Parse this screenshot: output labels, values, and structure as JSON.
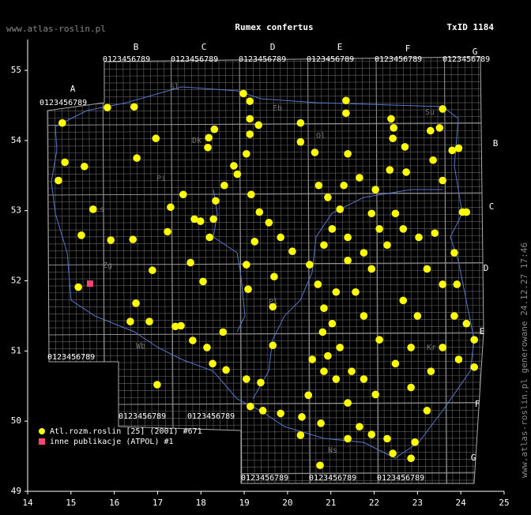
{
  "header": {
    "site": "www.atlas-roslin.pl",
    "title": "Rumex confertus",
    "taxon_id": "TxID 1184"
  },
  "footer": "www.atlas-roslin.pl generowane 24.12.27 17:46",
  "grid_labels": {
    "columns": [
      "A",
      "B",
      "C",
      "D",
      "E",
      "F",
      "G"
    ],
    "digits": "0123456789"
  },
  "region_labels": [
    "Sl",
    "Eb",
    "Dk",
    "Ol",
    "Su",
    "Pi",
    "Zg",
    "Ls",
    "Pl",
    "Wb",
    "Kr",
    "Ns"
  ],
  "chart_data": {
    "type": "scatter",
    "xlim": [
      14,
      25
    ],
    "ylim": [
      49,
      55.44
    ],
    "xticks": [
      14,
      15,
      16,
      17,
      18,
      19,
      20,
      21,
      22,
      23,
      24,
      25
    ],
    "yticks": [
      49,
      50,
      51,
      52,
      53,
      54,
      55
    ],
    "series": [
      {
        "name": "Atl.rozm.roslin [25] (2001) #671",
        "color": "#ffff00",
        "marker": "circle",
        "x": [
          14.8,
          15.84,
          16.46,
          14.86,
          15.31,
          14.71,
          15.51,
          15.24,
          15.92,
          16.43,
          15.17,
          16.5,
          16.37,
          16.81,
          16.96,
          16.52,
          16.99,
          16.88,
          17.59,
          17.3,
          17.23,
          17.76,
          18.05,
          17.41,
          17.54,
          17.81,
          18.14,
          18.18,
          18.31,
          18.16,
          18.34,
          17.99,
          18.2,
          17.85,
          18.29,
          18.54,
          18.76,
          18.98,
          19.13,
          19.13,
          19.13,
          19.33,
          19.05,
          18.84,
          19.16,
          19.35,
          19.57,
          19.24,
          19.05,
          19.09,
          18.51,
          18.27,
          18.58,
          19.05,
          19.38,
          19.14,
          19.43,
          19.84,
          20.33,
          19.66,
          19.66,
          19.69,
          19.84,
          20.11,
          20.3,
          20.3,
          20.63,
          20.72,
          20.93,
          21.35,
          21.35,
          21.39,
          21.3,
          21.21,
          21.03,
          20.84,
          20.51,
          20.7,
          20.84,
          20.81,
          20.93,
          21.12,
          21.39,
          21.66,
          21.94,
          22.43,
          22.85,
          22.94,
          23.22,
          22.85,
          22.49,
          22.12,
          21.76,
          21.57,
          21.94,
          22.3,
          22.67,
          23.03,
          23.4,
          21.94,
          21.66,
          22.03,
          22.39,
          22.45,
          22.43,
          22.71,
          22.36,
          22.74,
          23.3,
          23.51,
          23.58,
          23.36,
          23.8,
          23.95,
          23.58,
          24.04,
          24.13,
          23.85,
          23.91,
          23.85,
          24.13,
          24.31,
          24.31,
          23.95,
          23.58,
          23.31,
          22.85,
          23.0,
          22.67,
          22.03,
          21.76,
          21.48,
          21.21,
          21.03,
          21.12,
          21.39,
          21.39,
          21.76,
          22.12,
          22.49,
          23.22,
          23.58,
          20.84,
          20.57,
          20.48,
          20.77,
          20.3,
          20.75,
          21.39,
          22.3
        ],
        "y": [
          54.25,
          54.47,
          54.48,
          53.69,
          53.63,
          53.43,
          53.02,
          52.65,
          52.58,
          52.59,
          51.91,
          51.68,
          51.42,
          51.42,
          54.03,
          53.75,
          50.52,
          52.15,
          53.23,
          53.05,
          52.7,
          52.26,
          51.99,
          51.35,
          51.36,
          51.15,
          51.05,
          54.04,
          54.16,
          53.9,
          53.14,
          52.85,
          52.62,
          52.88,
          52.88,
          53.36,
          53.64,
          54.67,
          54.56,
          54.31,
          54.09,
          54.22,
          53.81,
          53.52,
          53.23,
          52.98,
          52.83,
          52.56,
          52.23,
          51.88,
          51.27,
          50.82,
          50.73,
          50.6,
          50.55,
          50.21,
          50.15,
          50.11,
          50.06,
          51.08,
          51.63,
          52.06,
          52.62,
          52.42,
          54.25,
          53.98,
          53.83,
          53.36,
          53.19,
          54.57,
          54.39,
          53.81,
          53.36,
          53.02,
          52.74,
          52.51,
          52.23,
          51.95,
          51.61,
          51.27,
          50.93,
          50.6,
          50.26,
          49.92,
          49.81,
          49.54,
          49.47,
          49.7,
          50.15,
          50.48,
          50.82,
          51.16,
          51.5,
          51.84,
          52.17,
          52.51,
          52.74,
          52.62,
          52.68,
          52.96,
          53.47,
          53.3,
          54.31,
          54.18,
          54.03,
          53.91,
          53.58,
          53.55,
          54.14,
          54.18,
          54.45,
          53.72,
          53.86,
          53.89,
          53.43,
          52.98,
          52.98,
          52.4,
          51.95,
          51.5,
          51.39,
          51.16,
          50.77,
          50.88,
          51.05,
          50.71,
          51.05,
          51.5,
          51.72,
          50.38,
          50.6,
          50.71,
          51.05,
          51.39,
          51.84,
          52.29,
          52.62,
          52.4,
          52.74,
          52.96,
          52.17,
          51.95,
          50.71,
          50.88,
          50.37,
          49.97,
          49.8,
          49.37,
          49.75,
          49.75
        ]
      },
      {
        "name": "inne publikacje (ATPOL) #1",
        "color": "#ff4477",
        "marker": "square",
        "x": [
          15.44
        ],
        "y": [
          51.96
        ]
      }
    ]
  }
}
